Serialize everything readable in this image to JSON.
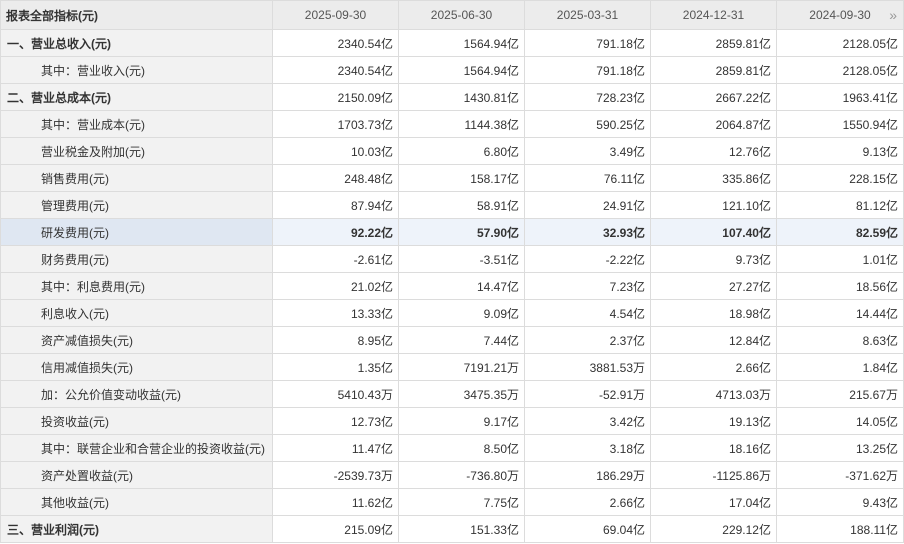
{
  "header": {
    "title": "报表全部指标(元)",
    "periods": [
      "2025-09-30",
      "2025-06-30",
      "2025-03-31",
      "2024-12-31",
      "2024-09-30"
    ]
  },
  "table": {
    "rows": [
      [
        "一、营业总收入(元)",
        "2340.54亿",
        "1564.94亿",
        "791.18亿",
        "2859.81亿",
        "2128.05亿"
      ],
      [
        "其中：营业收入(元)",
        "2340.54亿",
        "1564.94亿",
        "791.18亿",
        "2859.81亿",
        "2128.05亿"
      ],
      [
        "二、营业总成本(元)",
        "2150.09亿",
        "1430.81亿",
        "728.23亿",
        "2667.22亿",
        "1963.41亿"
      ],
      [
        "其中：营业成本(元)",
        "1703.73亿",
        "1144.38亿",
        "590.25亿",
        "2064.87亿",
        "1550.94亿"
      ],
      [
        "营业税金及附加(元)",
        "10.03亿",
        "6.80亿",
        "3.49亿",
        "12.76亿",
        "9.13亿"
      ],
      [
        "销售费用(元)",
        "248.48亿",
        "158.17亿",
        "76.11亿",
        "335.86亿",
        "228.15亿"
      ],
      [
        "管理费用(元)",
        "87.94亿",
        "58.91亿",
        "24.91亿",
        "121.10亿",
        "81.12亿"
      ],
      [
        "研发费用(元)",
        "92.22亿",
        "57.90亿",
        "32.93亿",
        "107.40亿",
        "82.59亿"
      ],
      [
        "财务费用(元)",
        "-2.61亿",
        "-3.51亿",
        "-2.22亿",
        "9.73亿",
        "1.01亿"
      ],
      [
        "其中：利息费用(元)",
        "21.02亿",
        "14.47亿",
        "7.23亿",
        "27.27亿",
        "18.56亿"
      ],
      [
        "利息收入(元)",
        "13.33亿",
        "9.09亿",
        "4.54亿",
        "18.98亿",
        "14.44亿"
      ],
      [
        "资产减值损失(元)",
        "8.95亿",
        "7.44亿",
        "2.37亿",
        "12.84亿",
        "8.63亿"
      ],
      [
        "信用减值损失(元)",
        "1.35亿",
        "7191.21万",
        "3881.53万",
        "2.66亿",
        "1.84亿"
      ],
      [
        "加：公允价值变动收益(元)",
        "5410.43万",
        "3475.35万",
        "-52.91万",
        "4713.03万",
        "215.67万"
      ],
      [
        "投资收益(元)",
        "12.73亿",
        "9.17亿",
        "3.42亿",
        "19.13亿",
        "14.05亿"
      ],
      [
        "其中：联营企业和合营企业的投资收益(元)",
        "11.47亿",
        "8.50亿",
        "3.18亿",
        "18.16亿",
        "13.25亿"
      ],
      [
        "资产处置收益(元)",
        "-2539.73万",
        "-736.80万",
        "186.29万",
        "-1125.86万",
        "-371.62万"
      ],
      [
        "其他收益(元)",
        "11.62亿",
        "7.75亿",
        "2.66亿",
        "17.04亿",
        "9.43亿"
      ],
      [
        "三、营业利润(元)",
        "215.09亿",
        "151.33亿",
        "69.04亿",
        "229.12亿",
        "188.11亿"
      ]
    ]
  }
}
